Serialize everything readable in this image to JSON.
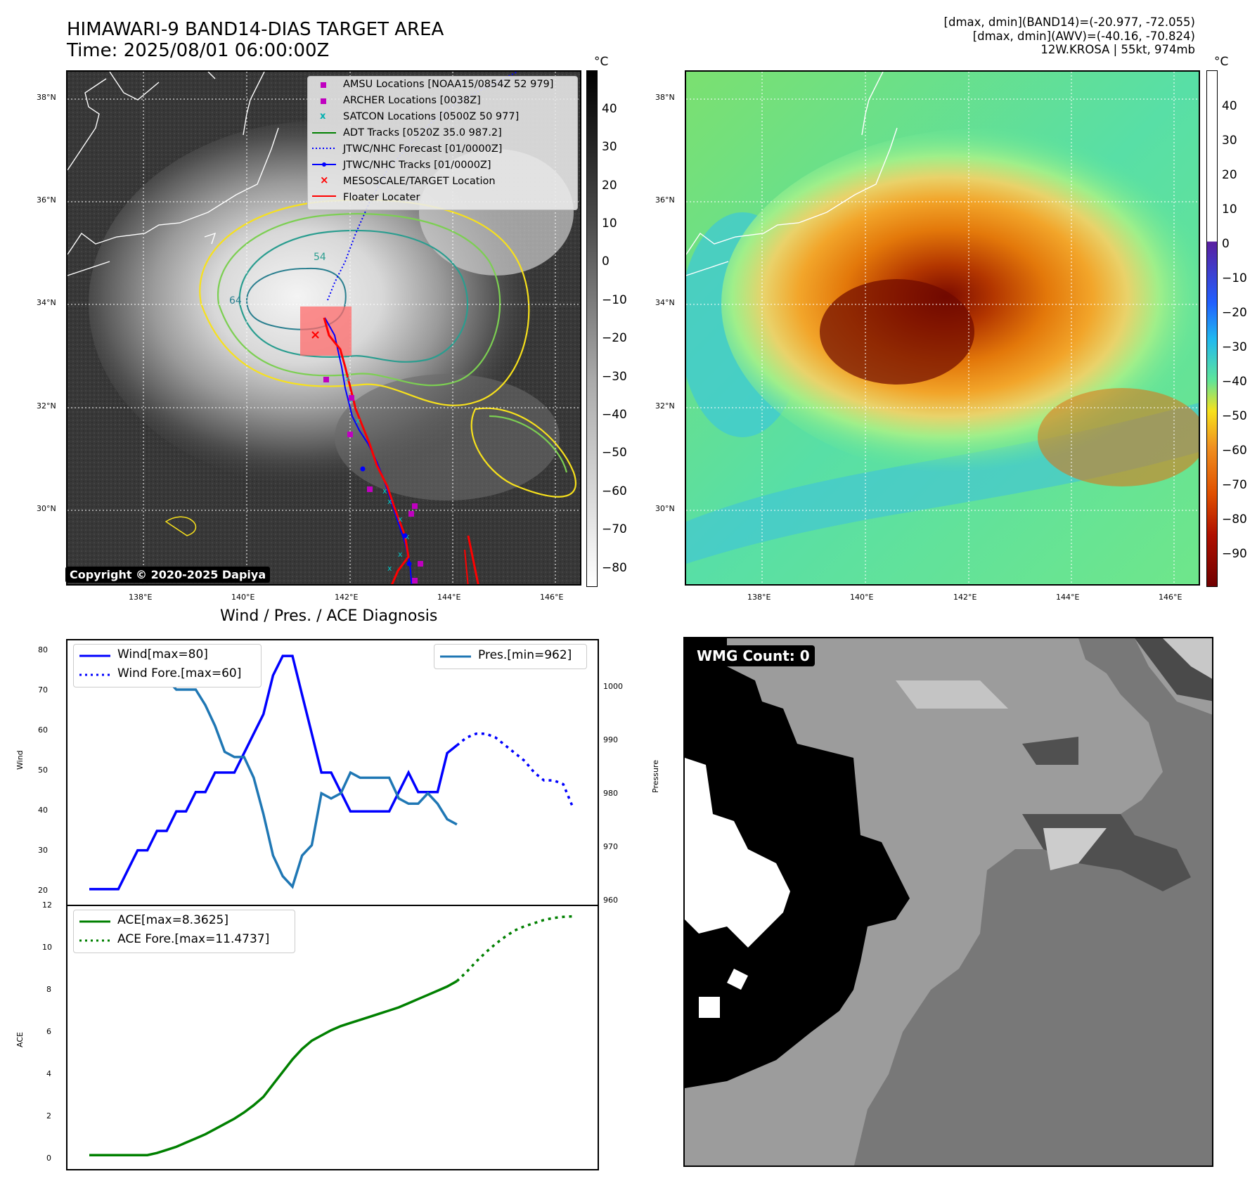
{
  "header": {
    "title_line1": "HIMAWARI-9 BAND14-DIAS TARGET AREA",
    "title_line2": "Time: 2025/08/01 06:00:00Z",
    "info_line1": "[dmax, dmin](BAND14)=(-20.977, -72.055)",
    "info_line2": "[dmax, dmin](AWV)=(-40.16, -70.824)",
    "info_line3": "12W.KROSA | 55kt, 974mb"
  },
  "map": {
    "lat_labels": [
      "38°N",
      "36°N",
      "34°N",
      "32°N",
      "30°N"
    ],
    "lon_labels": [
      "138°E",
      "140°E",
      "142°E",
      "144°E",
      "146°E"
    ],
    "copyright": "Copyright © 2020-2025 Dapiya",
    "contour_labels": [
      "54",
      "64"
    ]
  },
  "ir_colorbar": {
    "unit": "°C",
    "ticks": [
      "40",
      "30",
      "20",
      "10",
      "0",
      "−10",
      "−20",
      "−30",
      "−40",
      "−50",
      "−60",
      "−70",
      "−80"
    ]
  },
  "awv_colorbar": {
    "unit": "°C",
    "ticks": [
      "40",
      "30",
      "20",
      "10",
      "0",
      "−10",
      "−20",
      "−30",
      "−40",
      "−50",
      "−60",
      "−70",
      "−80",
      "−90"
    ]
  },
  "legend": {
    "amsu": "AMSU Locations [NOAA15/0854Z 52 979]",
    "archer": "ARCHER Locations [0038Z]",
    "satcon": "SATCON Locations [0500Z 50 977]",
    "adt": "ADT Tracks [0520Z 35.0 987.2]",
    "jtwc_fc": "JTWC/NHC Forecast [01/0000Z]",
    "jtwc_tr": "JTWC/NHC Tracks [01/0000Z]",
    "target": "MESOSCALE/TARGET Location",
    "floater": "Floater Locater"
  },
  "wmg": {
    "label": "WMG Count: 0"
  },
  "diagnosis": {
    "title": "Wind / Pres. / ACE Diagnosis",
    "wind_ylabel": "Wind",
    "pres_ylabel": "Pressure",
    "ace_ylabel": "ACE",
    "legend_wind": "Wind[max=80]",
    "legend_wind_fore": "Wind Fore.[max=60]",
    "legend_pres": "Pres.[min=962]",
    "legend_ace": "ACE[max=8.3625]",
    "legend_ace_fore": "ACE Fore.[max=11.4737]",
    "wind_ticks": [
      "80",
      "70",
      "60",
      "50",
      "40",
      "30",
      "20"
    ],
    "pres_ticks": [
      "1000",
      "990",
      "980",
      "970",
      "960"
    ],
    "ace_ticks": [
      "12",
      "10",
      "8",
      "6",
      "4",
      "2",
      "0"
    ]
  },
  "chart_data": [
    {
      "type": "line",
      "title": "Wind / Pres. / ACE Diagnosis",
      "ylabel": "Wind",
      "ylim": [
        18,
        82
      ],
      "series": [
        {
          "name": "Wind[max=80]",
          "color": "#0000ff",
          "style": "solid",
          "x": [
            0,
            1,
            2,
            3,
            4,
            5,
            6,
            7,
            8,
            9,
            10,
            11,
            12,
            13,
            14,
            15,
            16,
            17,
            18,
            19,
            20,
            21,
            22,
            23,
            24,
            25,
            26,
            27,
            28,
            29,
            30,
            31,
            32,
            33,
            34,
            35,
            36,
            37,
            38
          ],
          "values": [
            20,
            20,
            20,
            20,
            25,
            30,
            30,
            35,
            35,
            40,
            40,
            45,
            45,
            50,
            50,
            50,
            55,
            60,
            65,
            75,
            80,
            80,
            70,
            60,
            50,
            50,
            45,
            40,
            40,
            40,
            40,
            40,
            45,
            50,
            45,
            45,
            45,
            55,
            57
          ]
        },
        {
          "name": "Wind Fore.[max=60]",
          "color": "#0000ff",
          "style": "dotted",
          "x": [
            38,
            39,
            40,
            41,
            42,
            43,
            44,
            45,
            46,
            47,
            48,
            49,
            50
          ],
          "values": [
            57,
            59,
            60,
            60,
            59,
            57,
            55,
            53,
            50,
            48,
            48,
            47,
            41
          ]
        }
      ]
    },
    {
      "type": "line",
      "ylabel": "Pressure",
      "ylim": [
        960,
        1008
      ],
      "series": [
        {
          "name": "Pres.[min=962]",
          "color": "#1f77b4",
          "style": "solid",
          "x": [
            0,
            1,
            2,
            3,
            4,
            5,
            6,
            7,
            8,
            9,
            10,
            11,
            12,
            13,
            14,
            15,
            16,
            17,
            18,
            19,
            20,
            21,
            22,
            23,
            24,
            25,
            26,
            27,
            28,
            29,
            30,
            31,
            32,
            33,
            34,
            35,
            36,
            37,
            38
          ],
          "values": [
            1008,
            1008,
            1008,
            1006,
            1006,
            1005,
            1005,
            1002,
            1002,
            1000,
            1000,
            1000,
            997,
            993,
            988,
            987,
            987,
            983,
            976,
            968,
            964,
            962,
            968,
            970,
            980,
            979,
            980,
            984,
            983,
            983,
            983,
            983,
            979,
            978,
            978,
            980,
            978,
            975,
            974
          ]
        }
      ]
    },
    {
      "type": "line",
      "ylabel": "ACE",
      "ylim": [
        -0.5,
        12
      ],
      "series": [
        {
          "name": "ACE[max=8.3625]",
          "color": "#008000",
          "style": "solid",
          "x": [
            0,
            1,
            2,
            3,
            4,
            5,
            6,
            7,
            8,
            9,
            10,
            11,
            12,
            13,
            14,
            15,
            16,
            17,
            18,
            19,
            20,
            21,
            22,
            23,
            24,
            25,
            26,
            27,
            28,
            29,
            30,
            31,
            32,
            33,
            34,
            35,
            36,
            37,
            38
          ],
          "values": [
            0,
            0,
            0,
            0,
            0,
            0,
            0,
            0.1,
            0.25,
            0.4,
            0.6,
            0.8,
            1.0,
            1.25,
            1.5,
            1.75,
            2.05,
            2.4,
            2.8,
            3.4,
            4.0,
            4.6,
            5.1,
            5.5,
            5.75,
            6.0,
            6.2,
            6.35,
            6.5,
            6.65,
            6.8,
            6.95,
            7.1,
            7.3,
            7.5,
            7.7,
            7.9,
            8.1,
            8.3625
          ]
        },
        {
          "name": "ACE Fore.[max=11.4737]",
          "color": "#008000",
          "style": "dotted",
          "x": [
            38,
            39,
            40,
            41,
            42,
            43,
            44,
            45,
            46,
            47,
            48,
            49,
            50
          ],
          "values": [
            8.3625,
            8.8,
            9.3,
            9.75,
            10.15,
            10.5,
            10.8,
            11.0,
            11.15,
            11.3,
            11.4,
            11.45,
            11.4737
          ]
        }
      ]
    }
  ]
}
